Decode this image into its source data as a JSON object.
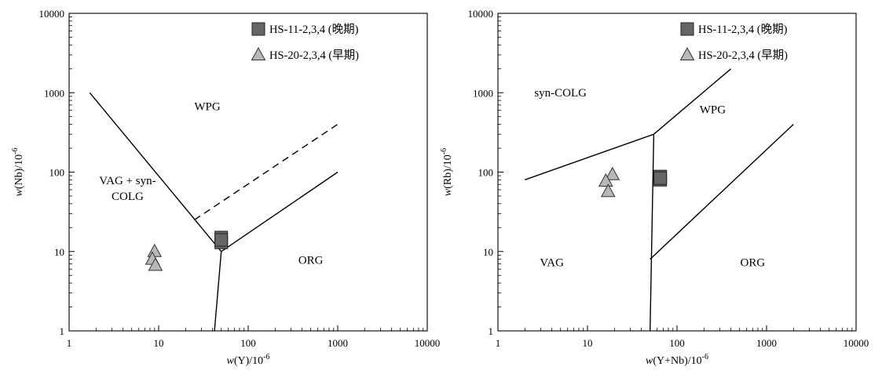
{
  "chart_data": [
    {
      "type": "scatter",
      "xscale": "log",
      "yscale": "log",
      "xlim": [
        1,
        10000
      ],
      "ylim": [
        1,
        10000
      ],
      "xticks": [
        "1",
        "10",
        "100",
        "1000",
        "10000"
      ],
      "yticks": [
        "1",
        "10",
        "100",
        "1000",
        "10000"
      ],
      "xlabel": {
        "italic": "w",
        "base": "(Y)/10",
        "sup": "-6"
      },
      "ylabel": {
        "italic": "w",
        "base": "(Nb)/10",
        "sup": "-6"
      },
      "grid": false,
      "legend": {
        "position": "top-right"
      },
      "series": [
        {
          "name": "HS-11-2,3,4 (晚期)",
          "marker": "square",
          "color": "#666666",
          "x": [
            50,
            50,
            50
          ],
          "y": [
            15,
            13,
            14
          ]
        },
        {
          "name": "HS-20-2,3,4 (早期)",
          "marker": "triangle",
          "color": "#b8b8b8",
          "x": [
            9,
            8.5,
            9.2
          ],
          "y": [
            10,
            8,
            6.7
          ]
        }
      ],
      "boundaries": [
        {
          "style": "solid",
          "points": [
            [
              1.7,
              1000
            ],
            [
              50,
              10
            ]
          ]
        },
        {
          "style": "solid",
          "points": [
            [
              50,
              10
            ],
            [
              1000,
              100
            ]
          ]
        },
        {
          "style": "solid",
          "points": [
            [
              50,
              10
            ],
            [
              42,
              1
            ]
          ]
        },
        {
          "style": "dashed",
          "points": [
            [
              25,
              25
            ],
            [
              1000,
              400
            ]
          ]
        }
      ],
      "fields": [
        {
          "lines": [
            "WPG"
          ],
          "at": [
            35,
            600
          ]
        },
        {
          "lines": [
            "VAG + syn-",
            "COLG"
          ],
          "at": [
            4.5,
            70
          ]
        },
        {
          "lines": [
            "ORG"
          ],
          "at": [
            500,
            7
          ]
        }
      ]
    },
    {
      "type": "scatter",
      "xscale": "log",
      "yscale": "log",
      "xlim": [
        1,
        10000
      ],
      "ylim": [
        1,
        10000
      ],
      "xticks": [
        "1",
        "10",
        "100",
        "1000",
        "10000"
      ],
      "yticks": [
        "1",
        "10",
        "100",
        "1000",
        "10000"
      ],
      "xlabel": {
        "italic": "w",
        "base": "(Y+Nb)/10",
        "sup": "-6"
      },
      "ylabel": {
        "italic": "w",
        "base": "(Rb)/10",
        "sup": "-6"
      },
      "grid": false,
      "legend": {
        "position": "top-right"
      },
      "series": [
        {
          "name": "HS-11-2,3,4 (晚期)",
          "marker": "square",
          "color": "#666666",
          "x": [
            65,
            65,
            65
          ],
          "y": [
            88,
            80,
            84
          ]
        },
        {
          "name": "HS-20-2,3,4 (早期)",
          "marker": "triangle",
          "color": "#b8b8b8",
          "x": [
            19,
            16,
            17
          ],
          "y": [
            93,
            77,
            57
          ]
        }
      ],
      "boundaries": [
        {
          "style": "solid",
          "points": [
            [
              2,
              80
            ],
            [
              55,
              300
            ]
          ]
        },
        {
          "style": "solid",
          "points": [
            [
              55,
              300
            ],
            [
              400,
              2000
            ]
          ]
        },
        {
          "style": "solid",
          "points": [
            [
              55,
              300
            ],
            [
              50,
              1
            ]
          ]
        },
        {
          "style": "solid",
          "points": [
            [
              50,
              8
            ],
            [
              2000,
              400
            ]
          ]
        }
      ],
      "fields": [
        {
          "lines": [
            "syn-COLG"
          ],
          "at": [
            5,
            900
          ]
        },
        {
          "lines": [
            "WPG"
          ],
          "at": [
            250,
            550
          ]
        },
        {
          "lines": [
            "VAG"
          ],
          "at": [
            4,
            6.5
          ]
        },
        {
          "lines": [
            "ORG"
          ],
          "at": [
            700,
            6.5
          ]
        }
      ]
    }
  ]
}
